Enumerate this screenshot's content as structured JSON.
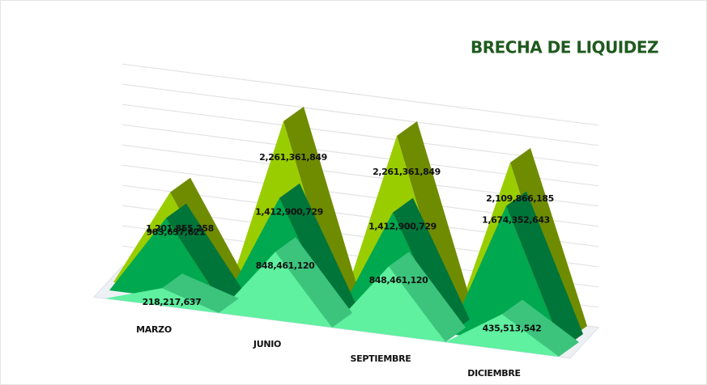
{
  "chart_data": {
    "type": "area3d",
    "title": "BRECHA DE LIQUIDEZ",
    "categories": [
      "MARZO",
      "JUNIO",
      "SEPTIEMBRE",
      "DICIEMBRE"
    ],
    "series": [
      {
        "color": "#9acd00",
        "side_color": "#6f8c00",
        "values": [
          1201855258,
          2261361849,
          2261361849,
          2109866185
        ],
        "value_labels": [
          "1,201,855,258",
          "2,261,361,849",
          "2,261,361,849",
          "2,109,866,185"
        ]
      },
      {
        "color": "#00a84f",
        "side_color": "#00753a",
        "values": [
          983637621,
          1412900729,
          1412900729,
          1674352643
        ],
        "value_labels": [
          "983,637,621",
          "1,412,900,729",
          "1,412,900,729",
          "1,674,352,643"
        ]
      },
      {
        "color": "#5ff0a0",
        "side_color": "#3cc47c",
        "values": [
          218217637,
          848461120,
          848461120,
          435513542
        ],
        "value_labels": [
          "218,217,637",
          "848,461,120",
          "848,461,120",
          "435,513,542"
        ]
      }
    ],
    "ylim": [
      0,
      2500000000
    ],
    "yticks": [
      0,
      250000000,
      500000000,
      750000000,
      1000000000,
      1250000000,
      1500000000,
      1750000000,
      2000000000,
      2250000000,
      2500000000
    ],
    "grid": true
  }
}
